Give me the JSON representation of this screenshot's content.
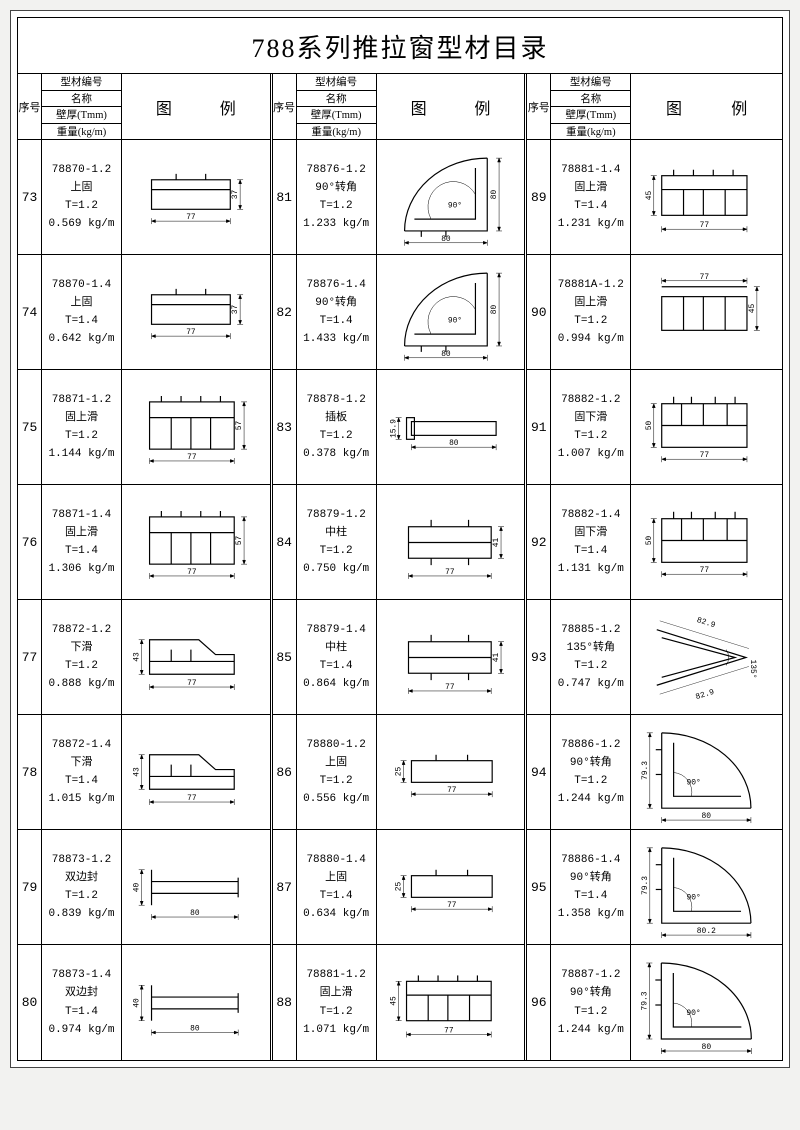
{
  "title": "788系列推拉窗型材目录",
  "header": {
    "seq": "序号",
    "spec1": "型材编号",
    "spec2": "名称",
    "spec3": "壁厚(Tmm)",
    "spec4": "重量(kg/m)",
    "diag1": "图",
    "diag2": "例"
  },
  "style": {
    "stroke": "#000000",
    "stroke_width": 1.2,
    "dim_stroke_width": 0.5,
    "background": "#ffffff",
    "font_family": "SimSun"
  },
  "columns": [
    {
      "rows": [
        {
          "seq": "73",
          "code": "78870-1.2",
          "name": "上固",
          "thick": "T=1.2",
          "weight": "0.569 kg/m",
          "shape": "rect-slot",
          "dims": {
            "w": "77",
            "h": "37"
          }
        },
        {
          "seq": "74",
          "code": "78870-1.4",
          "name": "上固",
          "thick": "T=1.4",
          "weight": "0.642 kg/m",
          "shape": "rect-slot",
          "dims": {
            "w": "77",
            "h": "37"
          }
        },
        {
          "seq": "75",
          "code": "78871-1.2",
          "name": "固上滑",
          "thick": "T=1.2",
          "weight": "1.144 kg/m",
          "shape": "double-track",
          "dims": {
            "w": "77",
            "h": "57"
          }
        },
        {
          "seq": "76",
          "code": "78871-1.4",
          "name": "固上滑",
          "thick": "T=1.4",
          "weight": "1.306 kg/m",
          "shape": "double-track",
          "dims": {
            "w": "77",
            "h": "57"
          }
        },
        {
          "seq": "77",
          "code": "78872-1.2",
          "name": "下滑",
          "thick": "T=1.2",
          "weight": "0.888 kg/m",
          "shape": "lower-track",
          "dims": {
            "w": "77",
            "h": "43"
          }
        },
        {
          "seq": "78",
          "code": "78872-1.4",
          "name": "下滑",
          "thick": "T=1.4",
          "weight": "1.015 kg/m",
          "shape": "lower-track",
          "dims": {
            "w": "77",
            "h": "43"
          }
        },
        {
          "seq": "79",
          "code": "78873-1.2",
          "name": "双边封",
          "thick": "T=1.2",
          "weight": "0.839 kg/m",
          "shape": "i-beam",
          "dims": {
            "w": "80",
            "h": "40"
          }
        },
        {
          "seq": "80",
          "code": "78873-1.4",
          "name": "双边封",
          "thick": "T=1.4",
          "weight": "0.974 kg/m",
          "shape": "i-beam",
          "dims": {
            "w": "80",
            "h": "40"
          }
        }
      ]
    },
    {
      "rows": [
        {
          "seq": "81",
          "code": "78876-1.2",
          "name": "90°转角",
          "thick": "T=1.2",
          "weight": "1.233 kg/m",
          "shape": "corner90",
          "dims": {
            "w": "80",
            "h": "80",
            "ang": "90°"
          }
        },
        {
          "seq": "82",
          "code": "78876-1.4",
          "name": "90°转角",
          "thick": "T=1.4",
          "weight": "1.433 kg/m",
          "shape": "corner90",
          "dims": {
            "w": "80",
            "h": "80",
            "ang": "90°"
          }
        },
        {
          "seq": "83",
          "code": "78878-1.2",
          "name": "插板",
          "thick": "T=1.2",
          "weight": "0.378 kg/m",
          "shape": "plate",
          "dims": {
            "w": "80",
            "h": "15.9"
          }
        },
        {
          "seq": "84",
          "code": "78879-1.2",
          "name": "中柱",
          "thick": "T=1.2",
          "weight": "0.750 kg/m",
          "shape": "mullion",
          "dims": {
            "w": "77",
            "h": "41"
          }
        },
        {
          "seq": "85",
          "code": "78879-1.4",
          "name": "中柱",
          "thick": "T=1.4",
          "weight": "0.864 kg/m",
          "shape": "mullion",
          "dims": {
            "w": "77",
            "h": "41"
          }
        },
        {
          "seq": "86",
          "code": "78880-1.2",
          "name": "上固",
          "thick": "T=1.2",
          "weight": "0.556 kg/m",
          "shape": "rect-slot-s",
          "dims": {
            "w": "77",
            "h": "25"
          }
        },
        {
          "seq": "87",
          "code": "78880-1.4",
          "name": "上固",
          "thick": "T=1.4",
          "weight": "0.634 kg/m",
          "shape": "rect-slot-s",
          "dims": {
            "w": "77",
            "h": "25"
          }
        },
        {
          "seq": "88",
          "code": "78881-1.2",
          "name": "固上滑",
          "thick": "T=1.2",
          "weight": "1.071 kg/m",
          "shape": "double-track-c",
          "dims": {
            "w": "77",
            "h": "45"
          }
        }
      ]
    },
    {
      "rows": [
        {
          "seq": "89",
          "code": "78881-1.4",
          "name": "固上滑",
          "thick": "T=1.4",
          "weight": "1.231 kg/m",
          "shape": "double-track-c",
          "dims": {
            "w": "77",
            "h": "45"
          }
        },
        {
          "seq": "90",
          "code": "78881A-1.2",
          "name": "固上滑",
          "thick": "T=1.2",
          "weight": "0.994 kg/m",
          "shape": "double-track-d",
          "dims": {
            "w": "77",
            "h": "45"
          }
        },
        {
          "seq": "91",
          "code": "78882-1.2",
          "name": "固下滑",
          "thick": "T=1.2",
          "weight": "1.007 kg/m",
          "shape": "lower-track-b",
          "dims": {
            "w": "77",
            "h": "50"
          }
        },
        {
          "seq": "92",
          "code": "78882-1.4",
          "name": "固下滑",
          "thick": "T=1.4",
          "weight": "1.131 kg/m",
          "shape": "lower-track-b",
          "dims": {
            "w": "77",
            "h": "50"
          }
        },
        {
          "seq": "93",
          "code": "78885-1.2",
          "name": "135°转角",
          "thick": "T=1.2",
          "weight": "0.747 kg/m",
          "shape": "corner135",
          "dims": {
            "w": "82.9",
            "h": "82.9",
            "ang": "135°"
          }
        },
        {
          "seq": "94",
          "code": "78886-1.2",
          "name": "90°转角",
          "thick": "T=1.2",
          "weight": "1.244 kg/m",
          "shape": "corner90b",
          "dims": {
            "w": "80",
            "h": "79.3",
            "ang": "90°"
          }
        },
        {
          "seq": "95",
          "code": "78886-1.4",
          "name": "90°转角",
          "thick": "T=1.4",
          "weight": "1.358 kg/m",
          "shape": "corner90b",
          "dims": {
            "w": "80.2",
            "h": "79.3",
            "ang": "90°"
          }
        },
        {
          "seq": "96",
          "code": "78887-1.2",
          "name": "90°转角",
          "thick": "T=1.2",
          "weight": "1.244 kg/m",
          "shape": "corner90b",
          "dims": {
            "w": "80",
            "h": "79.3",
            "ang": "90°"
          }
        }
      ]
    }
  ]
}
